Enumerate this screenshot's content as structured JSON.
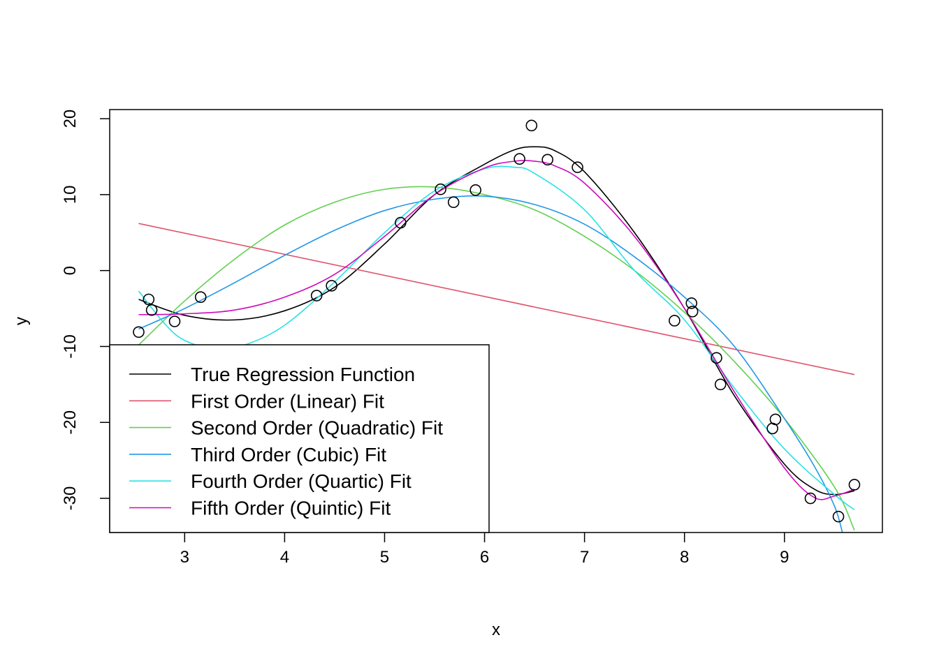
{
  "chart_data": {
    "type": "scatter",
    "title": "",
    "xlabel": "x",
    "ylabel": "y",
    "xlim": [
      2.25,
      9.98
    ],
    "ylim": [
      -34.5,
      21.2
    ],
    "xticks": [
      3,
      4,
      5,
      6,
      7,
      8,
      9
    ],
    "yticks": [
      -30,
      -20,
      -10,
      0,
      10,
      20
    ],
    "xtick_labels": [
      "3",
      "4",
      "5",
      "6",
      "7",
      "8",
      "9"
    ],
    "ytick_labels": [
      "-30",
      "-20",
      "-10",
      "0",
      "10",
      "20"
    ],
    "grid": false,
    "legend_position": "bottom-left",
    "points": {
      "x": [
        2.54,
        2.64,
        2.67,
        2.9,
        3.16,
        4.32,
        4.47,
        5.16,
        5.56,
        5.69,
        5.91,
        6.35,
        6.47,
        6.63,
        6.93,
        7.9,
        8.07,
        8.08,
        8.32,
        8.36,
        8.88,
        8.91,
        9.26,
        9.54,
        9.7
      ],
      "y": [
        -8.1,
        -3.8,
        -5.2,
        -6.7,
        -3.5,
        -3.3,
        -2.0,
        6.3,
        10.7,
        9.0,
        10.6,
        14.7,
        19.1,
        14.6,
        13.6,
        -6.6,
        -4.3,
        -5.4,
        -11.5,
        -15.0,
        -20.8,
        -19.6,
        -30.0,
        -32.4,
        -28.2
      ]
    },
    "series": [
      {
        "name": "True Regression Function",
        "color": "#000000",
        "x": [
          2.54,
          3.0,
          3.5,
          4.0,
          4.5,
          5.0,
          5.5,
          6.0,
          6.3,
          6.5,
          6.7,
          7.0,
          7.5,
          8.0,
          8.5,
          9.0,
          9.3,
          9.5,
          9.7
        ],
        "y": [
          -3.8,
          -5.9,
          -6.5,
          -5.3,
          -2.2,
          3.5,
          10.0,
          14.0,
          15.9,
          16.3,
          15.8,
          13.0,
          5.0,
          -5.0,
          -16.5,
          -25.5,
          -28.8,
          -29.5,
          -29.0
        ]
      },
      {
        "name": "First Order (Linear) Fit",
        "color": "#DF536B",
        "x": [
          2.54,
          9.7
        ],
        "y": [
          6.2,
          -13.7
        ]
      },
      {
        "name": "Second Order (Quadratic) Fit",
        "color": "#61D04F",
        "x": [
          2.54,
          3.0,
          3.5,
          4.0,
          4.5,
          5.0,
          5.5,
          6.0,
          6.5,
          7.0,
          7.5,
          8.0,
          8.5,
          9.0,
          9.5,
          9.7
        ],
        "y": [
          -9.8,
          -4.0,
          1.5,
          6.0,
          9.0,
          10.7,
          11.0,
          10.0,
          8.0,
          4.5,
          0.0,
          -5.5,
          -12.0,
          -19.5,
          -28.5,
          -34.2
        ]
      },
      {
        "name": "Third Order (Cubic) Fit",
        "color": "#2297E6",
        "x": [
          2.54,
          3.0,
          3.5,
          4.0,
          4.5,
          5.0,
          5.5,
          6.0,
          6.5,
          7.0,
          7.5,
          8.0,
          8.5,
          9.0,
          9.3,
          9.5,
          9.58
        ],
        "y": [
          -7.7,
          -5.0,
          -1.6,
          2.0,
          5.3,
          7.9,
          9.4,
          9.8,
          8.7,
          6.1,
          1.8,
          -3.5,
          -10.0,
          -19.5,
          -25.8,
          -31.0,
          -34.5
        ]
      },
      {
        "name": "Fourth Order (Quartic) Fit",
        "color": "#28E2E5",
        "x": [
          2.54,
          2.8,
          3.0,
          3.3,
          3.6,
          4.0,
          4.5,
          5.0,
          5.5,
          6.0,
          6.3,
          6.5,
          7.0,
          7.5,
          8.0,
          8.5,
          9.0,
          9.5,
          9.7
        ],
        "y": [
          -2.7,
          -7.0,
          -9.2,
          -10.3,
          -9.8,
          -7.2,
          -1.5,
          5.0,
          10.5,
          13.4,
          13.6,
          12.8,
          8.0,
          0.0,
          -6.5,
          -15.5,
          -23.5,
          -29.5,
          -31.5
        ]
      },
      {
        "name": "Fifth Order (Quintic) Fit",
        "color": "#CD0BBC",
        "x": [
          2.54,
          3.0,
          3.5,
          4.0,
          4.5,
          5.0,
          5.5,
          6.0,
          6.3,
          6.5,
          6.7,
          7.0,
          7.5,
          8.0,
          8.5,
          9.0,
          9.3,
          9.5,
          9.7
        ],
        "y": [
          -5.8,
          -5.7,
          -5.2,
          -3.5,
          -0.5,
          4.5,
          10.0,
          13.5,
          14.4,
          14.4,
          13.8,
          11.5,
          4.5,
          -5.0,
          -16.0,
          -26.0,
          -29.9,
          -29.7,
          -28.8
        ]
      }
    ]
  }
}
